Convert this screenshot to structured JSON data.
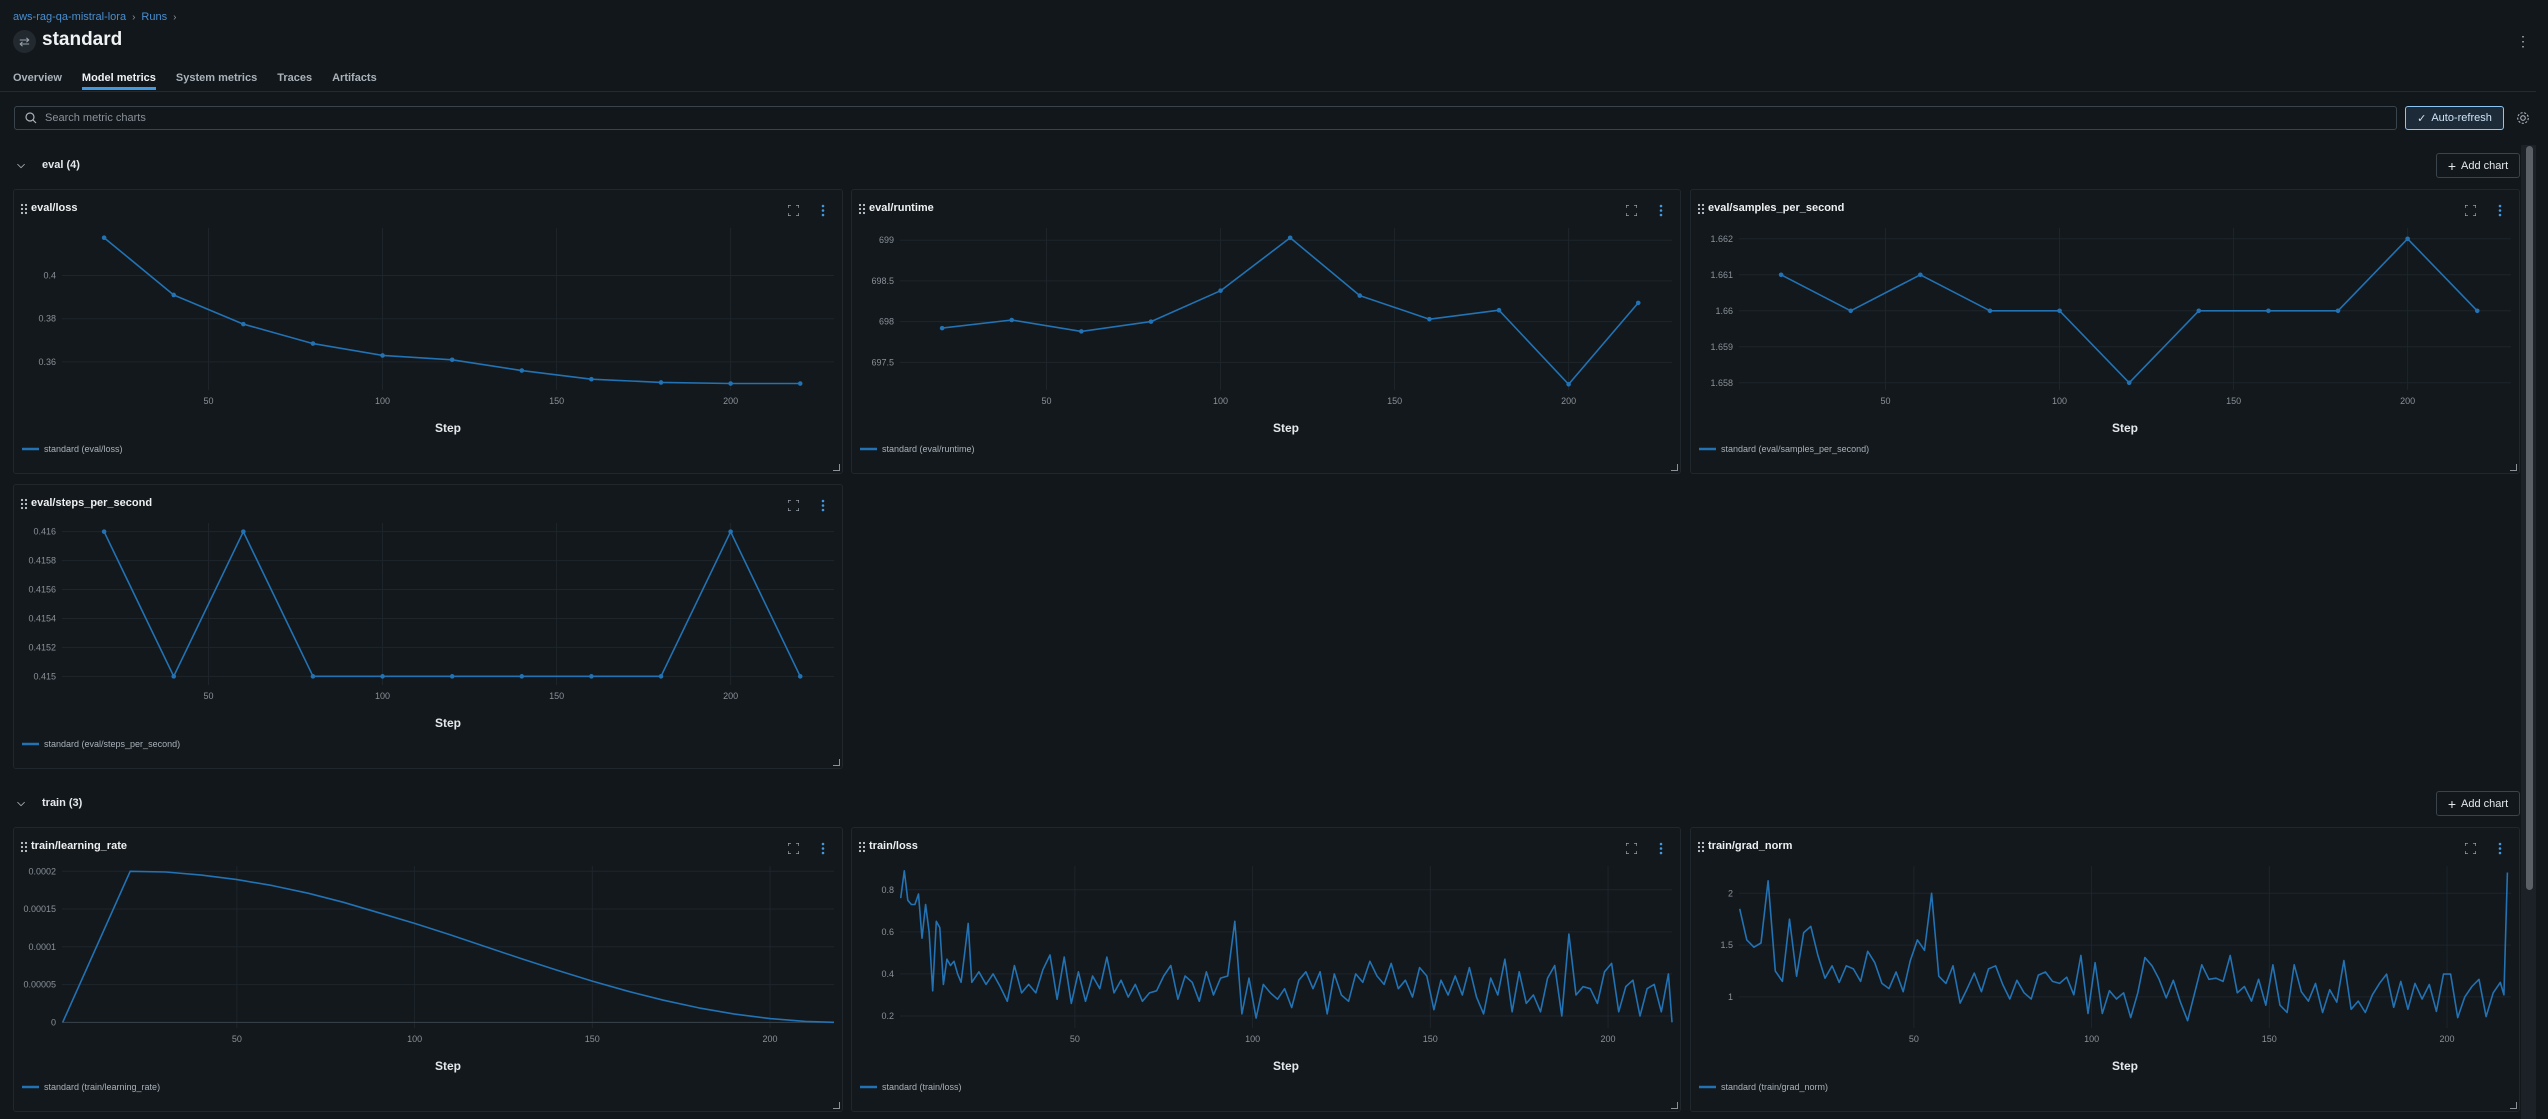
{
  "breadcrumb": [
    {
      "label": "aws-rag-qa-mistral-lora"
    },
    {
      "label": "Runs"
    }
  ],
  "header": {
    "title": "standard",
    "run_icon": "run-arrows-icon",
    "menu_icon": "kebab-icon"
  },
  "tabs": [
    {
      "label": "Overview",
      "active": false
    },
    {
      "label": "Model metrics",
      "active": true
    },
    {
      "label": "System metrics",
      "active": false
    },
    {
      "label": "Traces",
      "active": false
    },
    {
      "label": "Artifacts",
      "active": false
    }
  ],
  "search": {
    "placeholder": "Search metric charts",
    "value": ""
  },
  "toolbar": {
    "auto_refresh_label": "Auto-refresh",
    "auto_refresh_checked": true
  },
  "colors": {
    "accent": "#4299e0",
    "series": "#2272b4"
  },
  "sections": [
    {
      "label": "eval (4)",
      "add_chart_label": "Add chart"
    },
    {
      "label": "train (3)",
      "add_chart_label": "Add chart"
    }
  ],
  "chart_data": [
    {
      "type": "line",
      "title": "eval/loss",
      "xlabel": "Step",
      "legend": "standard (eval/loss)",
      "legend_position": "bottom-left",
      "markers": true,
      "grid": true,
      "xlim": [
        7.9,
        229.7
      ],
      "ylim": [
        0.347,
        0.422
      ],
      "xticks": [
        50,
        100,
        150,
        200
      ],
      "yticks": [
        0.36,
        0.38,
        0.4
      ],
      "x": [
        20,
        40,
        60,
        80,
        100,
        120,
        140,
        160,
        180,
        200,
        220
      ],
      "y": [
        0.4175,
        0.391,
        0.3775,
        0.3685,
        0.363,
        0.361,
        0.356,
        0.352,
        0.3505,
        0.35,
        0.35
      ]
    },
    {
      "type": "line",
      "title": "eval/runtime",
      "xlabel": "Step",
      "legend": "standard (eval/runtime)",
      "legend_position": "bottom-left",
      "markers": true,
      "grid": true,
      "xlim": [
        7.9,
        229.7
      ],
      "ylim": [
        697.16,
        699.15
      ],
      "xticks": [
        50,
        100,
        150,
        200
      ],
      "yticks": [
        697.5,
        698,
        698.5,
        699
      ],
      "x": [
        20,
        40,
        60,
        80,
        100,
        120,
        140,
        160,
        180,
        200,
        220
      ],
      "y": [
        697.92,
        698.02,
        697.88,
        698.0,
        698.38,
        699.03,
        698.32,
        698.03,
        698.14,
        697.23,
        698.23
      ]
    },
    {
      "type": "line",
      "title": "eval/samples_per_second",
      "xlabel": "Step",
      "legend": "standard (eval/samples_per_second)",
      "legend_position": "bottom-left",
      "markers": true,
      "grid": true,
      "xlim": [
        7.9,
        229.7
      ],
      "ylim": [
        1.6578,
        1.6623
      ],
      "xticks": [
        50,
        100,
        150,
        200
      ],
      "yticks": [
        1.658,
        1.659,
        1.66,
        1.661,
        1.662
      ],
      "x": [
        20,
        40,
        60,
        80,
        100,
        120,
        140,
        160,
        180,
        200,
        220
      ],
      "y": [
        1.661,
        1.66,
        1.661,
        1.66,
        1.66,
        1.658,
        1.66,
        1.66,
        1.66,
        1.662,
        1.66
      ]
    },
    {
      "type": "line",
      "title": "eval/steps_per_second",
      "xlabel": "Step",
      "legend": "standard (eval/steps_per_second)",
      "legend_position": "bottom-left",
      "markers": true,
      "grid": true,
      "xlim": [
        7.9,
        229.7
      ],
      "ylim": [
        0.41494,
        0.41606
      ],
      "xticks": [
        50,
        100,
        150,
        200
      ],
      "yticks": [
        0.415,
        0.4152,
        0.4154,
        0.4156,
        0.4158,
        0.416
      ],
      "x": [
        20,
        40,
        60,
        80,
        100,
        120,
        140,
        160,
        180,
        200,
        220
      ],
      "y": [
        0.416,
        0.415,
        0.416,
        0.415,
        0.415,
        0.415,
        0.415,
        0.415,
        0.415,
        0.416,
        0.415
      ]
    },
    {
      "type": "line",
      "title": "train/learning_rate",
      "xlabel": "Step",
      "legend": "standard (train/learning_rate)",
      "legend_position": "bottom-left",
      "markers": false,
      "grid": true,
      "xlim": [
        0.8,
        218
      ],
      "ylim": [
        -7.5e-06,
        0.000207
      ],
      "xticks": [
        50,
        100,
        150,
        200
      ],
      "yticks": [
        0,
        5e-05,
        0.0001,
        0.00015,
        0.0002
      ],
      "x": [
        1,
        20,
        30,
        40,
        50,
        60,
        70,
        80,
        90,
        100,
        110,
        120,
        130,
        140,
        150,
        160,
        170,
        180,
        190,
        200,
        210,
        218
      ],
      "y": [
        0,
        0.0002,
        0.000199,
        0.000195,
        0.000189,
        0.000181,
        0.000171,
        0.000159,
        0.000145,
        0.000131,
        0.000116,
        0.0001,
        8.44e-05,
        6.91e-05,
        5.46e-05,
        4.12e-05,
        2.93e-05,
        1.91e-05,
        1.09e-05,
        4.9e-06,
        1.2e-06,
        1e-07
      ]
    },
    {
      "type": "line",
      "title": "train/loss",
      "xlabel": "Step",
      "legend": "standard (train/loss)",
      "legend_position": "bottom-left",
      "markers": false,
      "grid": true,
      "xlim": [
        0.8,
        218
      ],
      "ylim": [
        0.143,
        0.913
      ],
      "xticks": [
        50,
        100,
        150,
        200
      ],
      "yticks": [
        0.2,
        0.4,
        0.6,
        0.8
      ],
      "x": [
        1,
        2,
        3,
        4,
        5,
        6,
        7,
        8,
        9,
        10,
        11,
        12,
        13,
        14,
        15,
        16,
        17,
        18,
        19,
        20,
        21,
        23,
        25,
        27,
        29,
        31,
        33,
        35,
        37,
        39,
        41,
        43,
        45,
        47,
        49,
        51,
        53,
        55,
        57,
        59,
        61,
        63,
        65,
        67,
        69,
        71,
        73,
        75,
        77,
        79,
        81,
        83,
        85,
        87,
        89,
        91,
        93,
        95,
        97,
        99,
        101,
        103,
        105,
        107,
        109,
        111,
        113,
        115,
        117,
        119,
        121,
        123,
        125,
        127,
        129,
        131,
        133,
        135,
        137,
        139,
        141,
        143,
        145,
        147,
        149,
        151,
        153,
        155,
        157,
        159,
        161,
        163,
        165,
        167,
        169,
        171,
        173,
        175,
        177,
        179,
        181,
        183,
        185,
        187,
        189,
        191,
        193,
        195,
        197,
        199,
        201,
        203,
        205,
        207,
        209,
        211,
        213,
        215,
        217,
        218
      ],
      "y": [
        0.76,
        0.89,
        0.75,
        0.73,
        0.73,
        0.78,
        0.57,
        0.73,
        0.6,
        0.32,
        0.65,
        0.62,
        0.35,
        0.47,
        0.44,
        0.46,
        0.4,
        0.36,
        0.5,
        0.64,
        0.36,
        0.41,
        0.35,
        0.4,
        0.34,
        0.27,
        0.44,
        0.31,
        0.35,
        0.31,
        0.42,
        0.49,
        0.28,
        0.48,
        0.26,
        0.41,
        0.27,
        0.39,
        0.33,
        0.48,
        0.31,
        0.37,
        0.29,
        0.35,
        0.27,
        0.31,
        0.32,
        0.39,
        0.44,
        0.28,
        0.39,
        0.36,
        0.27,
        0.41,
        0.3,
        0.38,
        0.39,
        0.65,
        0.21,
        0.38,
        0.19,
        0.35,
        0.31,
        0.28,
        0.33,
        0.24,
        0.37,
        0.41,
        0.33,
        0.41,
        0.21,
        0.4,
        0.3,
        0.27,
        0.4,
        0.36,
        0.46,
        0.39,
        0.35,
        0.45,
        0.33,
        0.37,
        0.29,
        0.43,
        0.39,
        0.23,
        0.37,
        0.3,
        0.39,
        0.3,
        0.43,
        0.29,
        0.21,
        0.38,
        0.3,
        0.47,
        0.22,
        0.41,
        0.26,
        0.3,
        0.22,
        0.38,
        0.44,
        0.2,
        0.59,
        0.3,
        0.34,
        0.33,
        0.26,
        0.41,
        0.45,
        0.22,
        0.34,
        0.37,
        0.2,
        0.33,
        0.35,
        0.22,
        0.4,
        0.17
      ]
    },
    {
      "type": "line",
      "title": "train/grad_norm",
      "xlabel": "Step",
      "legend": "standard (train/grad_norm)",
      "legend_position": "bottom-left",
      "markers": false,
      "grid": true,
      "xlim": [
        0.8,
        218
      ],
      "ylim": [
        0.7,
        2.263
      ],
      "xticks": [
        50,
        100,
        150,
        200
      ],
      "yticks": [
        1,
        1.5,
        2
      ],
      "x": [
        1,
        3,
        5,
        7,
        9,
        11,
        13,
        15,
        17,
        19,
        21,
        23,
        25,
        27,
        29,
        31,
        33,
        35,
        37,
        39,
        41,
        43,
        45,
        47,
        49,
        51,
        53,
        55,
        57,
        59,
        61,
        63,
        65,
        67,
        69,
        71,
        73,
        75,
        77,
        79,
        81,
        83,
        85,
        87,
        89,
        91,
        93,
        95,
        97,
        99,
        101,
        103,
        105,
        107,
        109,
        111,
        113,
        115,
        117,
        119,
        121,
        123,
        125,
        127,
        129,
        131,
        133,
        135,
        137,
        139,
        141,
        143,
        145,
        147,
        149,
        151,
        153,
        155,
        157,
        159,
        161,
        163,
        165,
        167,
        169,
        171,
        173,
        175,
        177,
        179,
        181,
        183,
        185,
        187,
        189,
        191,
        193,
        195,
        197,
        199,
        201,
        203,
        205,
        207,
        209,
        211,
        213,
        215,
        216,
        217
      ],
      "y": [
        1.85,
        1.55,
        1.48,
        1.52,
        2.12,
        1.25,
        1.15,
        1.75,
        1.2,
        1.62,
        1.68,
        1.4,
        1.18,
        1.3,
        1.14,
        1.3,
        1.27,
        1.15,
        1.44,
        1.33,
        1.13,
        1.08,
        1.24,
        1.05,
        1.35,
        1.55,
        1.45,
        2.0,
        1.2,
        1.13,
        1.3,
        0.94,
        1.08,
        1.23,
        1.05,
        1.27,
        1.3,
        1.12,
        0.98,
        1.16,
        1.04,
        0.98,
        1.21,
        1.24,
        1.15,
        1.13,
        1.19,
        1.02,
        1.4,
        0.84,
        1.33,
        0.84,
        1.06,
        0.98,
        1.04,
        0.8,
        1.04,
        1.38,
        1.3,
        1.17,
        0.99,
        1.16,
        0.95,
        0.77,
        1.04,
        1.31,
        1.17,
        1.18,
        1.15,
        1.4,
        1.04,
        1.1,
        0.96,
        1.17,
        0.92,
        1.31,
        0.92,
        0.85,
        1.31,
        1.05,
        0.96,
        1.13,
        0.85,
        1.07,
        0.95,
        1.35,
        0.88,
        0.96,
        0.85,
        1.02,
        1.13,
        1.22,
        0.9,
        1.15,
        0.88,
        1.13,
        0.98,
        1.12,
        0.86,
        1.22,
        1.22,
        0.8,
        1.0,
        1.1,
        1.17,
        0.81,
        1.04,
        1.14,
        1.02,
        2.2
      ]
    }
  ]
}
